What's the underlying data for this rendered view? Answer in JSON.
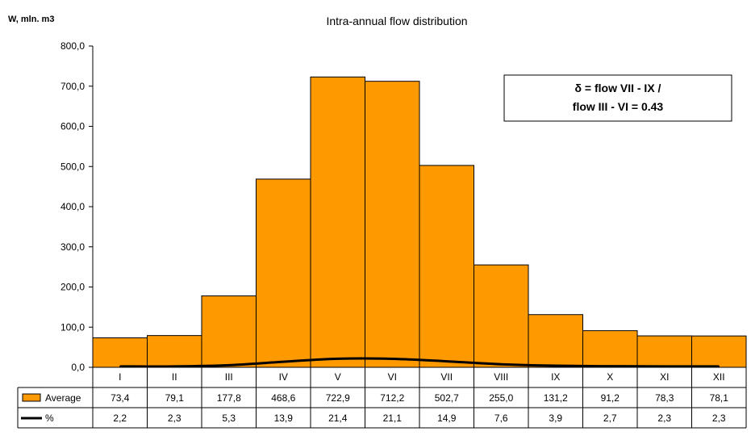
{
  "chart_data": {
    "type": "bar",
    "title": "Intra-annual flow distribution",
    "ylabel": "W, mln. m3",
    "ylim": [
      0,
      800
    ],
    "yticks": [
      "0,0",
      "100,0",
      "200,0",
      "300,0",
      "400,0",
      "500,0",
      "600,0",
      "700,0",
      "800,0"
    ],
    "ytick_values": [
      0,
      100,
      200,
      300,
      400,
      500,
      600,
      700,
      800
    ],
    "categories": [
      "I",
      "II",
      "III",
      "IV",
      "V",
      "VI",
      "VII",
      "VIII",
      "IX",
      "X",
      "XI",
      "XII"
    ],
    "series": [
      {
        "name": "Average",
        "kind": "bar",
        "color": "#ff9900",
        "values": [
          73.4,
          79.1,
          177.8,
          468.6,
          722.9,
          712.2,
          502.7,
          255.0,
          131.2,
          91.2,
          78.3,
          78.1
        ],
        "labels": [
          "73,4",
          "79,1",
          "177,8",
          "468,6",
          "722,9",
          "712,2",
          "502,7",
          "255,0",
          "131,2",
          "91,2",
          "78,3",
          "78,1"
        ]
      },
      {
        "name": "%",
        "kind": "line",
        "color": "#000000",
        "values": [
          2.2,
          2.3,
          5.3,
          13.9,
          21.4,
          21.1,
          14.9,
          7.6,
          3.9,
          2.7,
          2.3,
          2.3
        ],
        "labels": [
          "2,2",
          "2,3",
          "5,3",
          "13,9",
          "21,4",
          "21,1",
          "14,9",
          "7,6",
          "3,9",
          "2,7",
          "2,3",
          "2,3"
        ]
      }
    ],
    "annotation": {
      "line1": "δ = flow VII - IX /",
      "line2": "flow III - VI = 0.43"
    },
    "grid": false,
    "legend": "data-table"
  }
}
